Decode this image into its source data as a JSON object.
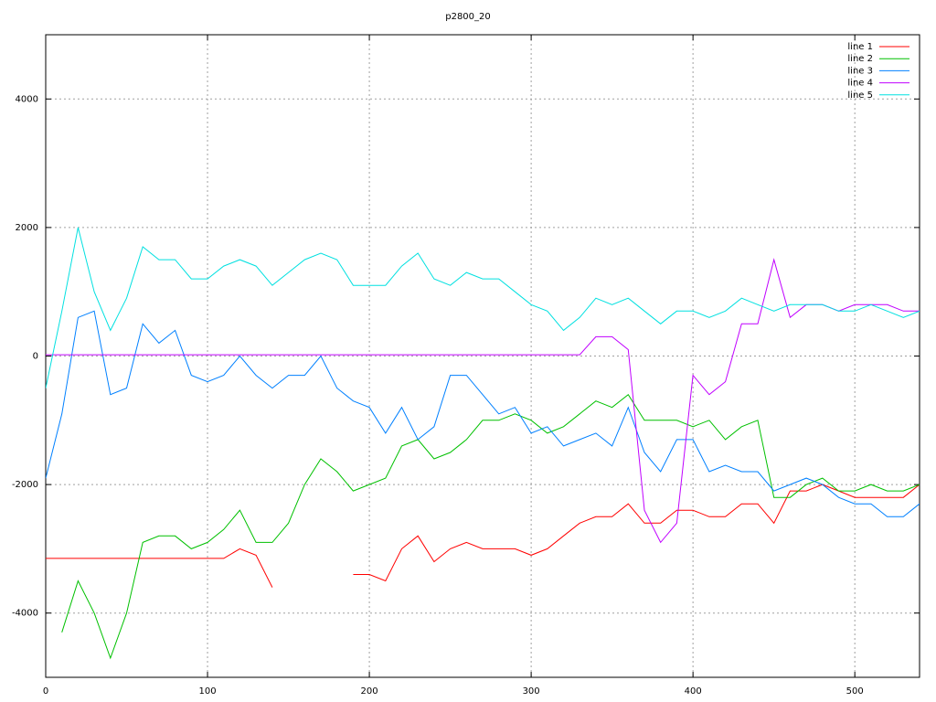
{
  "chart_data": {
    "type": "line",
    "title": "p2800_20",
    "x": [
      0,
      10,
      20,
      30,
      40,
      50,
      60,
      70,
      80,
      90,
      100,
      110,
      120,
      130,
      140,
      150,
      160,
      170,
      180,
      190,
      200,
      210,
      220,
      230,
      240,
      250,
      260,
      270,
      280,
      290,
      300,
      310,
      320,
      330,
      340,
      350,
      360,
      370,
      380,
      390,
      400,
      410,
      420,
      430,
      440,
      450,
      460,
      470,
      480,
      490,
      500,
      510,
      520,
      530,
      540
    ],
    "series": [
      {
        "name": "line 1",
        "color": "#ff0000",
        "values": [
          -3150,
          -3150,
          -3150,
          -3150,
          -3150,
          -3150,
          -3150,
          -3150,
          -3150,
          -3150,
          -3150,
          -3150,
          -3000,
          -3100,
          -3600,
          null,
          null,
          null,
          null,
          -3400,
          -3400,
          -3500,
          -3000,
          -2800,
          -3200,
          -3000,
          -2900,
          -3000,
          -3000,
          -3000,
          -3100,
          -3000,
          -2800,
          -2600,
          -2500,
          -2500,
          -2300,
          -2600,
          -2600,
          -2400,
          -2400,
          -2500,
          -2500,
          -2300,
          -2300,
          -2600,
          -2100,
          -2100,
          -2000,
          -2100,
          -2200,
          -2200,
          -2200,
          -2200,
          -2000
        ]
      },
      {
        "name": "line 2",
        "color": "#00c000",
        "values": [
          null,
          -4300,
          -3500,
          -4000,
          -4700,
          -4000,
          -2900,
          -2800,
          -2800,
          -3000,
          -2900,
          -2700,
          -2400,
          -2900,
          -2900,
          -2600,
          -2000,
          -1600,
          -1800,
          -2100,
          -2000,
          -1900,
          -1400,
          -1300,
          -1600,
          -1500,
          -1300,
          -1000,
          -1000,
          -900,
          -1000,
          -1200,
          -1100,
          -900,
          -700,
          -800,
          -600,
          -1000,
          -1000,
          -1000,
          -1100,
          -1000,
          -1300,
          -1100,
          -1000,
          -2200,
          -2200,
          -2000,
          -1900,
          -2100,
          -2100,
          -2000,
          -2100,
          -2100,
          -2000
        ]
      },
      {
        "name": "line 3",
        "color": "#0080ff",
        "values": [
          -1900,
          -900,
          600,
          700,
          -600,
          -500,
          500,
          200,
          400,
          -300,
          -400,
          -300,
          0,
          -300,
          -500,
          -300,
          -300,
          0,
          -500,
          -700,
          -800,
          -1200,
          -800,
          -1300,
          -1100,
          -300,
          -300,
          -600,
          -900,
          -800,
          -1200,
          -1100,
          -1400,
          -1300,
          -1200,
          -1400,
          -800,
          -1500,
          -1800,
          -1300,
          -1300,
          -1800,
          -1700,
          -1800,
          -1800,
          -2100,
          -2000,
          -1900,
          -2000,
          -2200,
          -2300,
          -2300,
          -2500,
          -2500,
          -2300
        ]
      },
      {
        "name": "line 4",
        "color": "#c000ff",
        "values": [
          20,
          20,
          20,
          20,
          20,
          20,
          20,
          20,
          20,
          20,
          20,
          20,
          20,
          20,
          20,
          20,
          20,
          20,
          20,
          20,
          20,
          20,
          20,
          20,
          20,
          20,
          20,
          20,
          20,
          20,
          20,
          20,
          20,
          20,
          300,
          300,
          100,
          -2400,
          -2900,
          -2600,
          -300,
          -600,
          -400,
          500,
          500,
          1500,
          600,
          800,
          800,
          700,
          800,
          800,
          800,
          700,
          700
        ]
      },
      {
        "name": "line 5",
        "color": "#00e0e0",
        "values": [
          -500,
          700,
          2000,
          1000,
          400,
          900,
          1700,
          1500,
          1500,
          1200,
          1200,
          1400,
          1500,
          1400,
          1100,
          1300,
          1500,
          1600,
          1500,
          1100,
          1100,
          1100,
          1400,
          1600,
          1200,
          1100,
          1300,
          1200,
          1200,
          1000,
          800,
          700,
          400,
          600,
          900,
          800,
          900,
          700,
          500,
          700,
          700,
          600,
          700,
          900,
          800,
          700,
          800,
          800,
          800,
          700,
          700,
          800,
          700,
          600,
          700
        ]
      }
    ],
    "xlim": [
      0,
      540
    ],
    "ylim": [
      -5000,
      5000
    ],
    "xticks": [
      0,
      100,
      200,
      300,
      400,
      500
    ],
    "yticks": [
      -4000,
      -2000,
      0,
      2000,
      4000
    ],
    "grid": true,
    "legend": "top-right"
  }
}
